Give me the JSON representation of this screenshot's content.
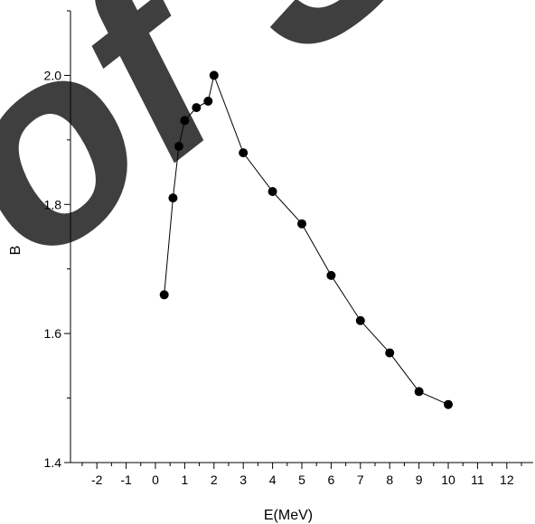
{
  "watermark": {
    "text": "of S"
  },
  "chart_data": {
    "type": "line",
    "title": "",
    "xlabel": "E(MeV)",
    "ylabel": "B",
    "xlim": [
      -2.9,
      12.9
    ],
    "ylim": [
      1.4,
      2.1
    ],
    "x_ticks": [
      -2,
      -1,
      0,
      1,
      2,
      3,
      4,
      5,
      6,
      7,
      8,
      9,
      10,
      11,
      12
    ],
    "y_ticks": [
      1.4,
      1.6,
      1.8,
      2.0
    ],
    "x_tick_labels": [
      "-2",
      "-1",
      "0",
      "1",
      "2",
      "3",
      "4",
      "5",
      "6",
      "7",
      "8",
      "9",
      "10",
      "11",
      "12"
    ],
    "y_tick_labels": [
      "1.4",
      "1.6",
      "1.8",
      "2.0"
    ],
    "grid": false,
    "legend": "none",
    "marker": "filled-circle",
    "series": [
      {
        "x": [
          0.3,
          0.6,
          0.8,
          1.0,
          1.4,
          1.8,
          2.0,
          3,
          4,
          5,
          6,
          7,
          8,
          9,
          10
        ],
        "y": [
          1.66,
          1.81,
          1.89,
          1.93,
          1.95,
          1.96,
          2.0,
          1.88,
          1.82,
          1.77,
          1.69,
          1.62,
          1.57,
          1.51,
          1.49
        ],
        "color": "#000000"
      }
    ]
  }
}
